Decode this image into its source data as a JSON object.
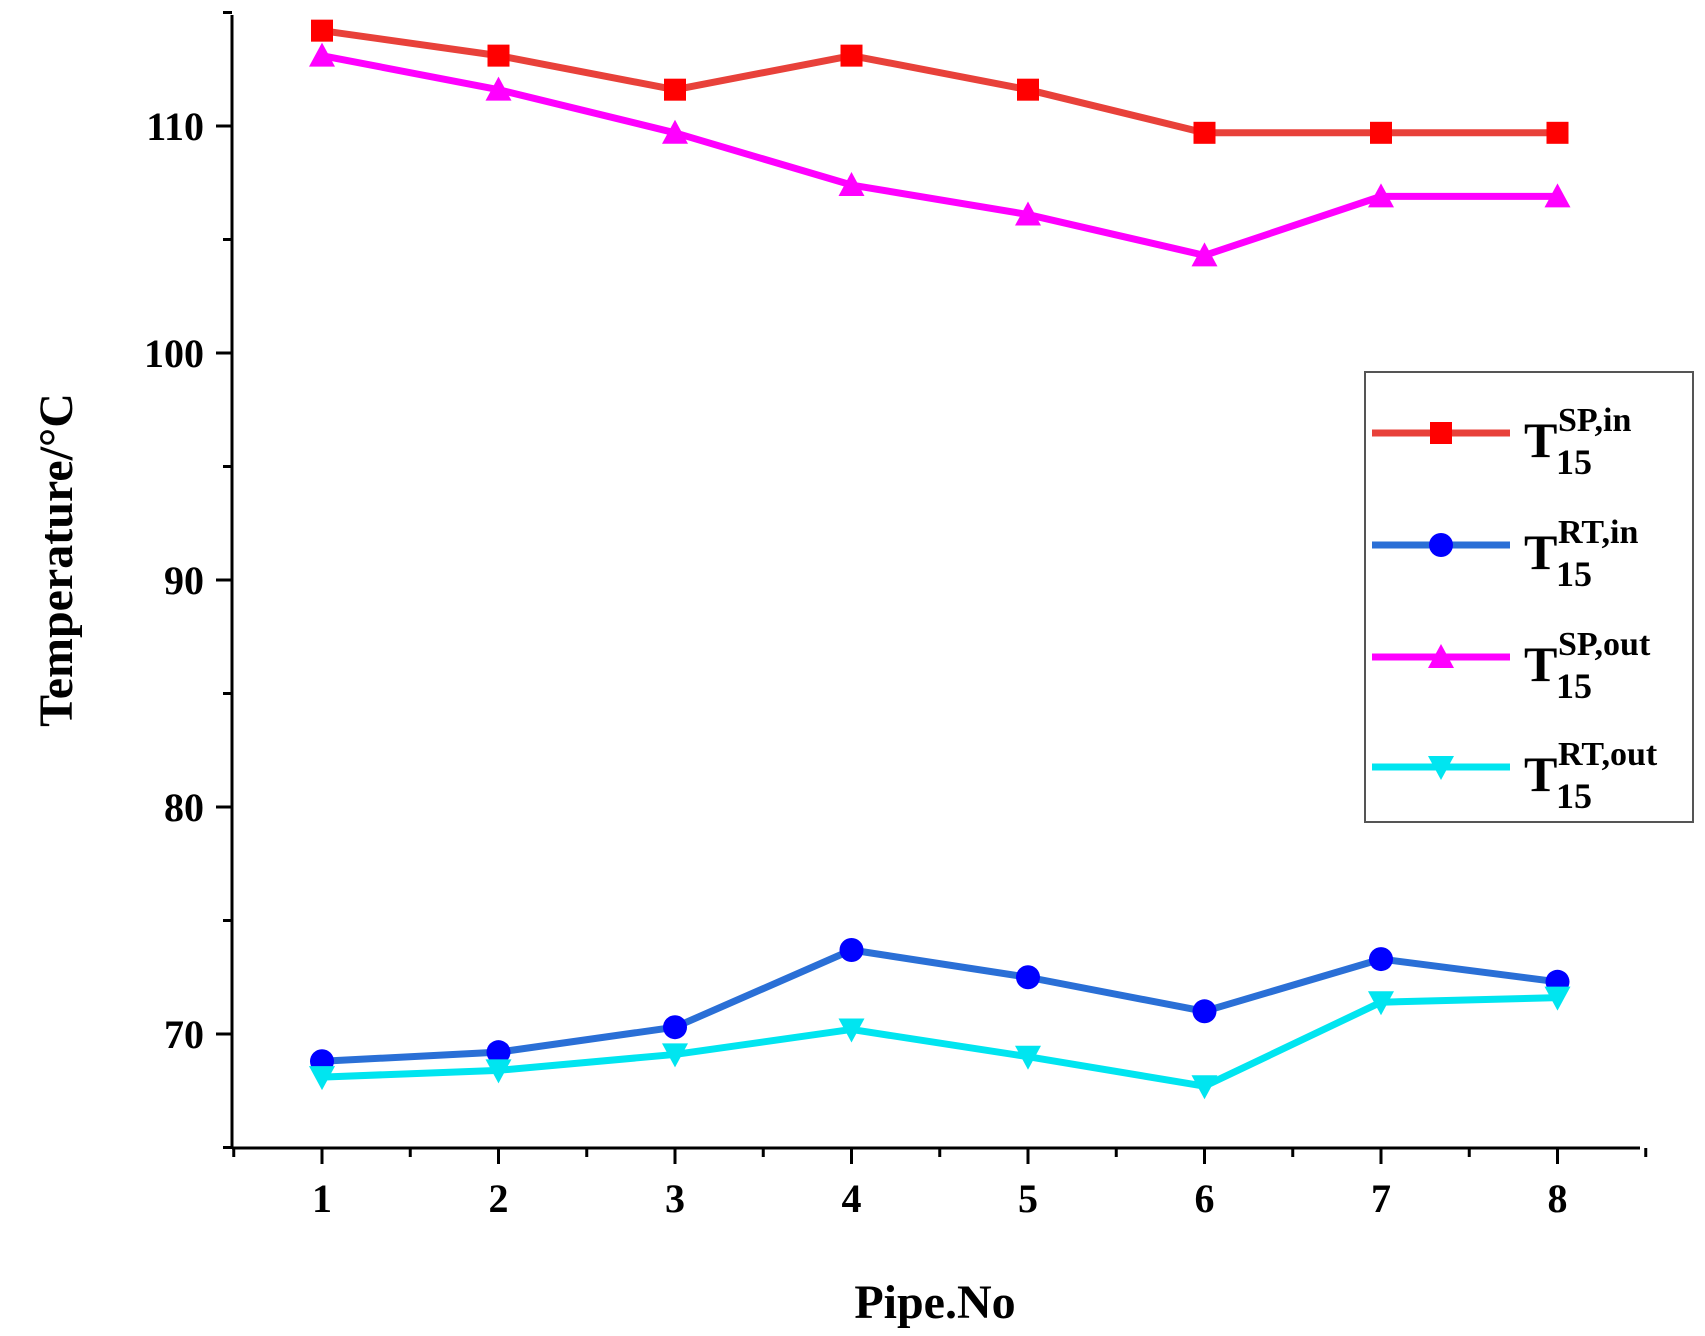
{
  "chart_data": {
    "type": "line",
    "title": "",
    "xlabel": "Pipe.No",
    "ylabel": "Temperature/°C",
    "xlim": [
      0.5,
      8.5
    ],
    "ylim": [
      65,
      115
    ],
    "x": [
      1,
      2,
      3,
      4,
      5,
      6,
      7,
      8
    ],
    "x_ticks": [
      "1",
      "2",
      "3",
      "4",
      "5",
      "6",
      "7",
      "8"
    ],
    "y_ticks": [
      70,
      80,
      90,
      100,
      110
    ],
    "y_tick_labels": [
      "70",
      "80",
      "90",
      "100",
      "110"
    ],
    "grid": false,
    "legend_position": "right",
    "series": [
      {
        "name": "T15SP,in",
        "label_main": "T",
        "label_sup": "SP,in",
        "label_sub": "15",
        "color": "#e8413a",
        "marker_color": "#ff0000",
        "marker": "square",
        "values": [
          114.2,
          113.1,
          111.6,
          113.1,
          111.6,
          109.7,
          109.7,
          109.7
        ]
      },
      {
        "name": "T15RT,in",
        "label_main": "T",
        "label_sup": "RT,in",
        "label_sub": "15",
        "color": "#2a6fd6",
        "marker_color": "#0000ff",
        "marker": "circle",
        "values": [
          68.8,
          69.2,
          70.3,
          73.7,
          72.5,
          71.0,
          73.3,
          72.3
        ]
      },
      {
        "name": "T15SP,out",
        "label_main": "T",
        "label_sup": "SP,out",
        "label_sub": "15",
        "color": "#ff00ff",
        "marker_color": "#ff00ff",
        "marker": "triangle-up",
        "values": [
          113.1,
          111.6,
          109.7,
          107.4,
          106.1,
          104.3,
          106.9,
          106.9
        ]
      },
      {
        "name": "T15RT,out",
        "label_main": "T",
        "label_sup": "RT,out",
        "label_sub": "15",
        "color": "#00e5f0",
        "marker_color": "#00e5f0",
        "marker": "triangle-down",
        "values": [
          68.1,
          68.4,
          69.1,
          70.2,
          69.0,
          67.7,
          71.4,
          71.6
        ]
      }
    ]
  }
}
